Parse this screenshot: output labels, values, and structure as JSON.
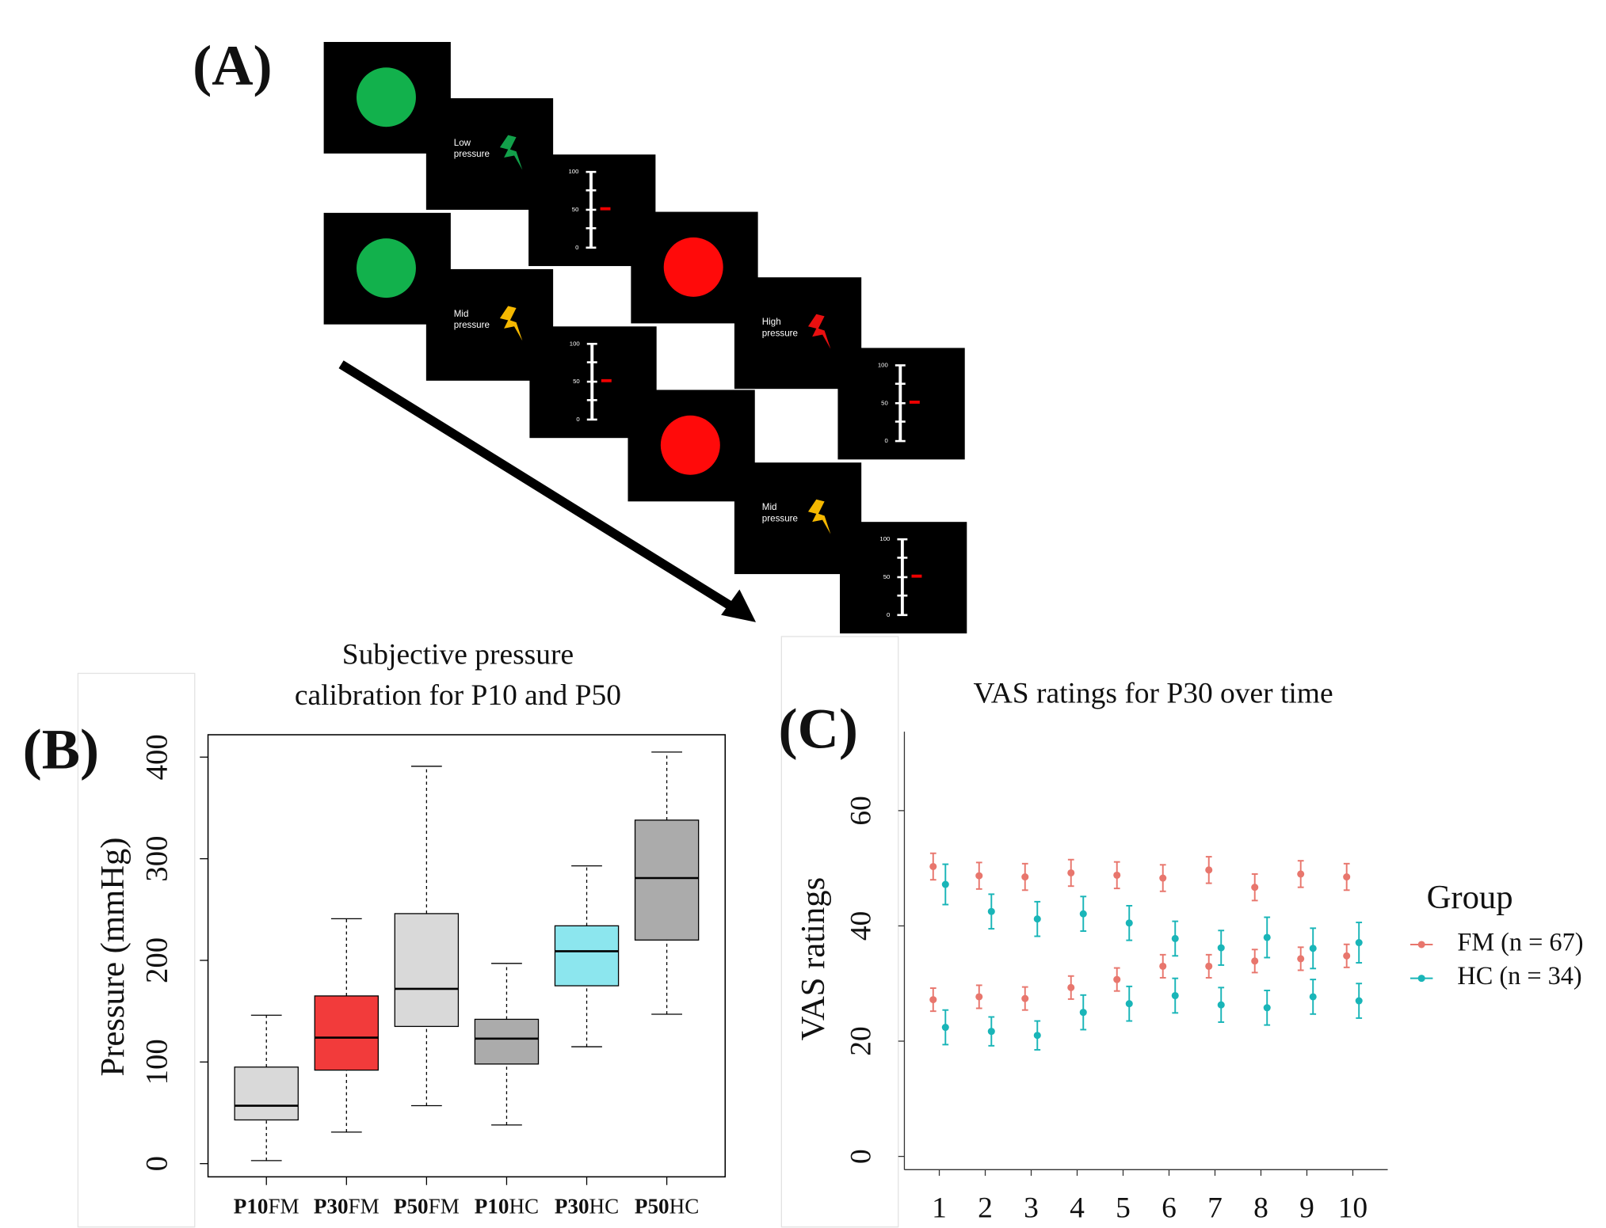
{
  "panel_a": {
    "label": "(A)",
    "cues": [
      [
        "Low",
        "pressure"
      ],
      [
        "Mid",
        "pressure"
      ],
      [
        "High",
        "pressure"
      ],
      [
        "Mid",
        "pressure"
      ]
    ],
    "scale_labels": [
      100,
      50,
      0
    ]
  },
  "chart_data": [
    {
      "type": "box",
      "panel_label": "(B)",
      "title": [
        "Subjective pressure",
        "calibration for P10 and P50"
      ],
      "y_label": "Pressure (mmHg)",
      "categories": [
        "P10FM",
        "P30FM",
        "P50FM",
        "P10HC",
        "P30HC",
        "P50HC"
      ],
      "colors": [
        "#d9d9d9",
        "#f23b3b",
        "#d9d9d9",
        "#ababab",
        "#8ce6ee",
        "#ababab"
      ],
      "boxes": [
        {
          "min": 3,
          "q1": 43,
          "median": 57,
          "q3": 95,
          "max": 146
        },
        {
          "min": 31,
          "q1": 92,
          "median": 124,
          "q3": 165,
          "max": 241
        },
        {
          "min": 57,
          "q1": 135,
          "median": 172,
          "q3": 246,
          "max": 391
        },
        {
          "min": 38,
          "q1": 98,
          "median": 123,
          "q3": 142,
          "max": 197
        },
        {
          "min": 115,
          "q1": 175,
          "median": 209,
          "q3": 234,
          "max": 293
        },
        {
          "min": 147,
          "q1": 220,
          "median": 281,
          "q3": 338,
          "max": 405
        }
      ],
      "ylim": [
        -13,
        422
      ],
      "yticks": [
        0,
        100,
        200,
        300,
        400
      ]
    },
    {
      "type": "errorbar",
      "panel_label": "(C)",
      "title": "VAS ratings for P30 over time",
      "y_label": "VAS ratings",
      "x": [
        1,
        2,
        3,
        4,
        5,
        6,
        7,
        8,
        9,
        10
      ],
      "xlim": [
        0.24,
        10.76
      ],
      "xticks": [
        1,
        2,
        3,
        4,
        5,
        6,
        7,
        8,
        9,
        10
      ],
      "ylim": [
        -2.3,
        73.7
      ],
      "yticks": [
        0,
        20,
        40,
        60
      ],
      "legend_title": "Group",
      "series": [
        {
          "name": "FM (n = 67)",
          "color": "#e8766d",
          "sets": [
            {
              "values": [
                50.3,
                48.7,
                48.5,
                49.2,
                48.8,
                48.3,
                49.7,
                46.7,
                49.0,
                48.5
              ],
              "errors": [
                2.3,
                2.3,
                2.3,
                2.3,
                2.3,
                2.3,
                2.3,
                2.3,
                2.3,
                2.3
              ]
            },
            {
              "values": [
                27.2,
                27.7,
                27.4,
                29.3,
                30.7,
                33.0,
                33.0,
                33.9,
                34.3,
                34.8
              ],
              "errors": [
                2.0,
                2.0,
                2.0,
                2.0,
                2.0,
                2.0,
                2.0,
                2.0,
                2.0,
                2.0
              ]
            }
          ]
        },
        {
          "name": "HC (n = 34)",
          "color": "#19b5b8",
          "sets": [
            {
              "values": [
                47.2,
                42.5,
                41.2,
                42.1,
                40.5,
                37.8,
                36.2,
                38.0,
                36.1,
                37.1
              ],
              "errors": [
                3.5,
                3.0,
                3.0,
                3.0,
                3.0,
                3.0,
                3.0,
                3.5,
                3.5,
                3.5
              ]
            },
            {
              "values": [
                22.4,
                21.7,
                21.0,
                25.0,
                26.5,
                27.9,
                26.3,
                25.8,
                27.7,
                27.0
              ],
              "errors": [
                3.0,
                2.5,
                2.5,
                3.0,
                3.0,
                3.0,
                3.0,
                3.0,
                3.0,
                3.0
              ]
            }
          ]
        }
      ]
    }
  ]
}
